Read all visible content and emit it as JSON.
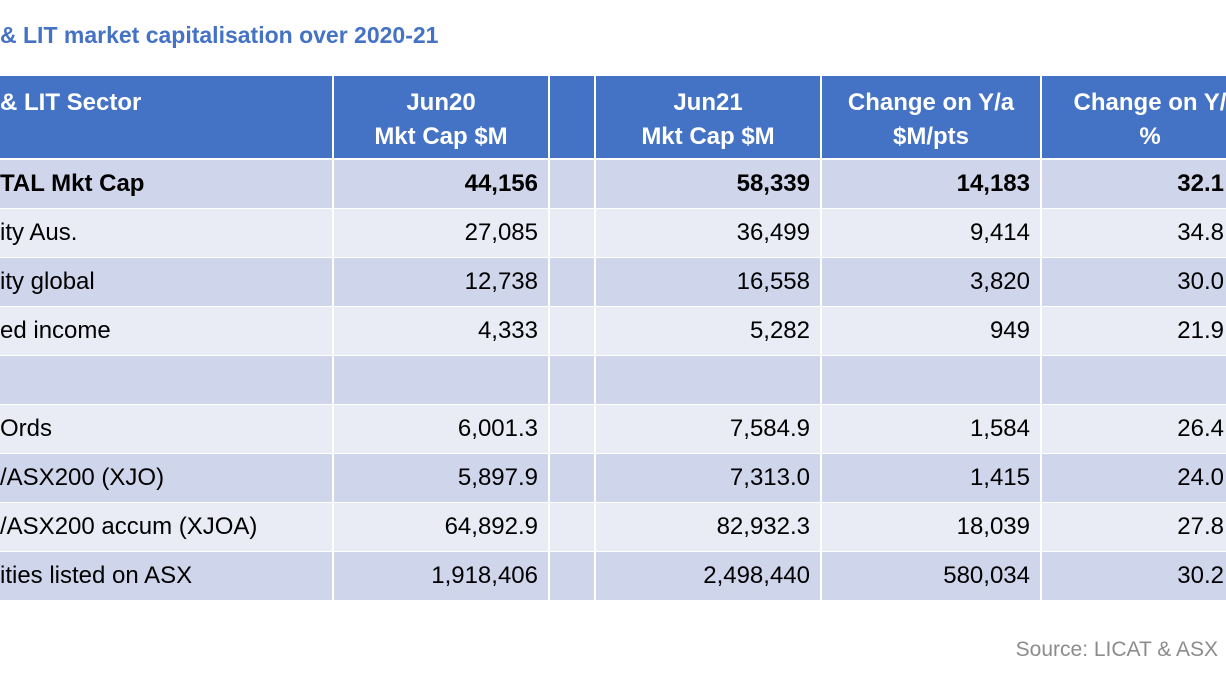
{
  "title": "& LIT market capitalisation over 2020-21",
  "table": {
    "header": [
      [
        "& LIT Sector"
      ],
      [
        "Jun20",
        "Mkt Cap $M"
      ],
      [
        "Jun21",
        "Mkt Cap $M"
      ],
      [
        "Change on Y/a",
        "$M/pts"
      ],
      [
        "Change on Y/",
        "%"
      ]
    ],
    "groups": [
      [
        [
          "TAL Mkt Cap",
          "44,156",
          "58,339",
          "14,183",
          "32.1"
        ],
        [
          "ity Aus.",
          "27,085",
          "36,499",
          "9,414",
          "34.8"
        ],
        [
          "ity global",
          "12,738",
          "16,558",
          "3,820",
          "30.0"
        ],
        [
          "ed income",
          "4,333",
          "5,282",
          "949",
          "21.9"
        ]
      ],
      [
        [
          "Ords",
          "6,001.3",
          "7,584.9",
          "1,584",
          "26.4"
        ],
        [
          "/ASX200  (XJO)",
          "5,897.9",
          "7,313.0",
          "1,415",
          "24.0"
        ],
        [
          "/ASX200  accum (XJOA)",
          "64,892.9",
          "82,932.3",
          "18,039",
          "27.8"
        ],
        [
          "ities listed on ASX",
          "1,918,406",
          "2,498,440",
          "580,034",
          "30.2"
        ]
      ]
    ]
  },
  "source": "Source: LICAT & ASX"
}
